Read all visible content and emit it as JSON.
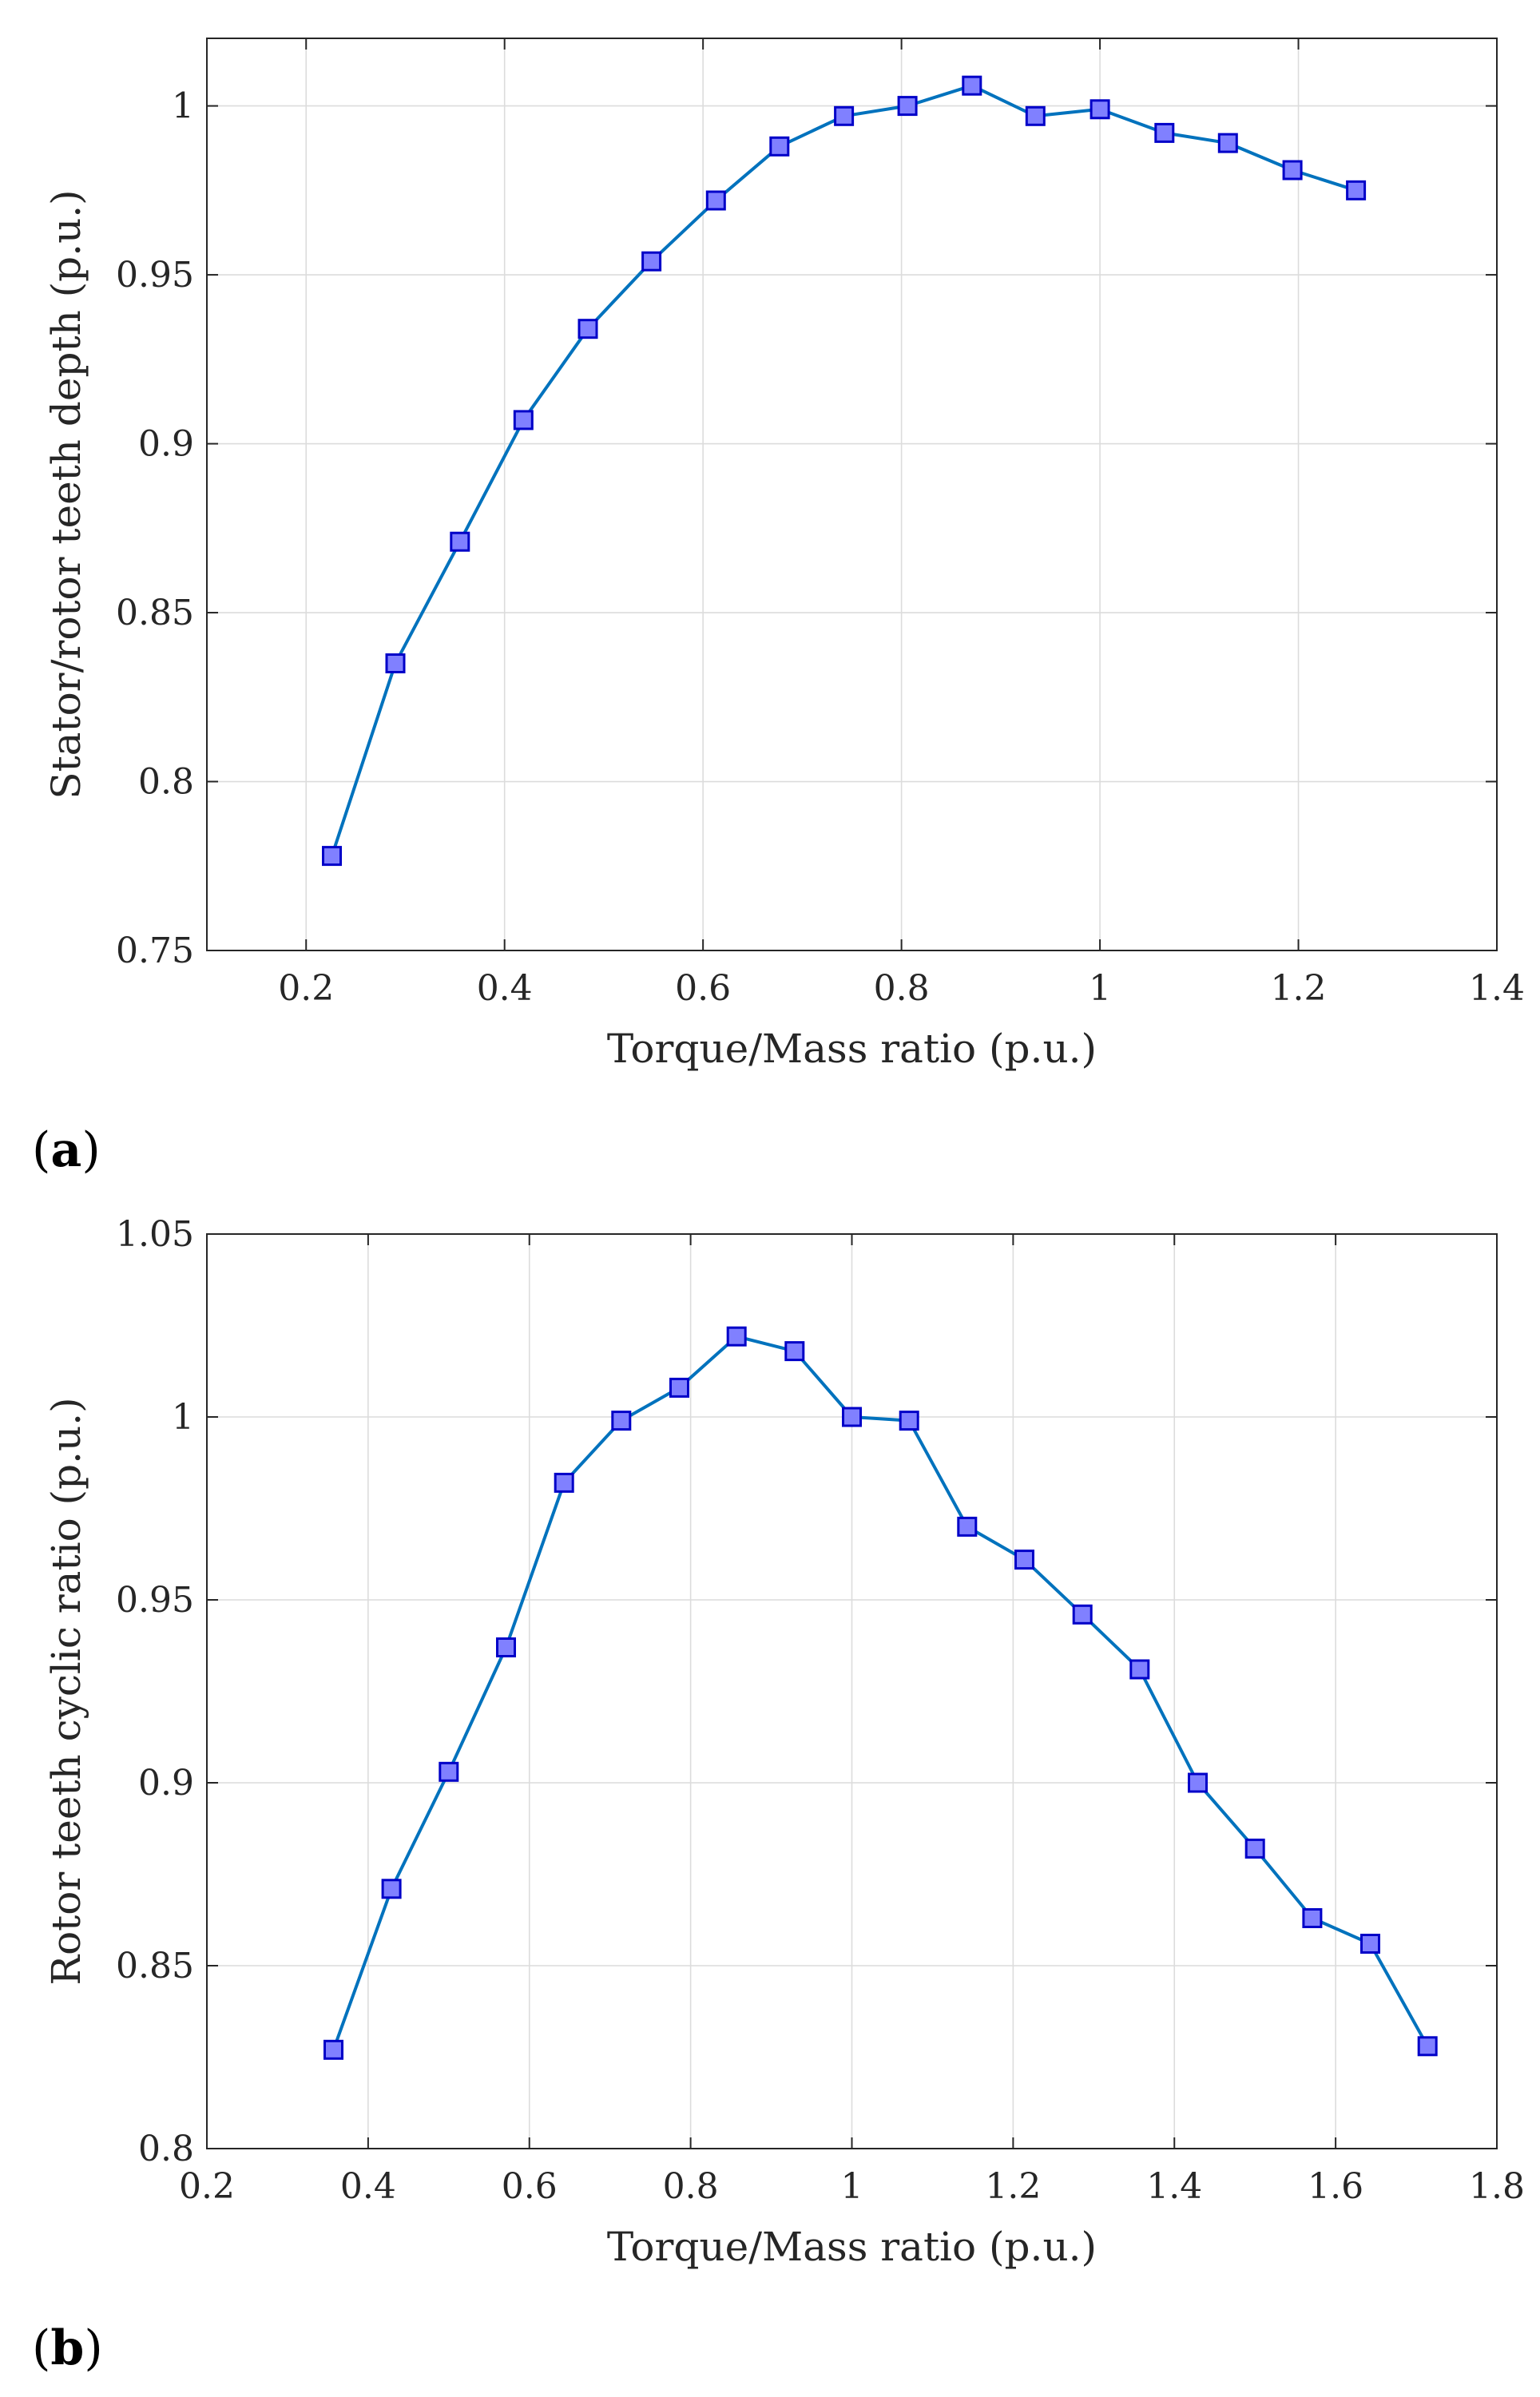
{
  "panels": [
    {
      "label_open": "(",
      "label_letter": "a",
      "label_close": ")"
    },
    {
      "label_open": "(",
      "label_letter": "b",
      "label_close": ")"
    }
  ],
  "colors": {
    "line": "#0072BD",
    "marker_fill": "#8080FF",
    "marker_stroke": "#0000C8",
    "grid": "#DCDCDC",
    "axes": "#262626",
    "text": "#262626"
  },
  "chart_data": [
    {
      "type": "line",
      "title": "",
      "xlabel": "Torque/Mass ratio (p.u.)",
      "ylabel": "Stator/rotor teeth depth (p.u.)",
      "xlim": [
        0.1,
        1.4
      ],
      "ylim": [
        0.75,
        1.02
      ],
      "xticks": [
        0.2,
        0.4,
        0.6,
        0.8,
        1.0,
        1.2,
        1.4
      ],
      "xtick_labels": [
        "0.2",
        "0.4",
        "0.6",
        "0.8",
        "1",
        "1.2",
        "1.4"
      ],
      "yticks": [
        0.75,
        0.8,
        0.85,
        0.9,
        0.95,
        1.0
      ],
      "ytick_labels": [
        "0.75",
        "0.8",
        "0.85",
        "0.9",
        "0.95",
        "1"
      ],
      "grid": true,
      "marker": "square",
      "series": [
        {
          "name": "",
          "x": [
            0.226,
            0.29,
            0.355,
            0.419,
            0.484,
            0.548,
            0.613,
            0.677,
            0.742,
            0.806,
            0.871,
            0.935,
            1.0,
            1.065,
            1.129,
            1.194,
            1.258
          ],
          "y": [
            0.778,
            0.835,
            0.871,
            0.907,
            0.934,
            0.954,
            0.972,
            0.988,
            0.997,
            1.0,
            1.006,
            0.997,
            0.999,
            0.992,
            0.989,
            0.981,
            0.975
          ]
        }
      ]
    },
    {
      "type": "line",
      "title": "",
      "xlabel": "Torque/Mass ratio (p.u.)",
      "ylabel": "Rotor teeth cyclic ratio (p.u.)",
      "xlim": [
        0.2,
        1.8
      ],
      "ylim": [
        0.8,
        1.05
      ],
      "xticks": [
        0.2,
        0.4,
        0.6,
        0.8,
        1.0,
        1.2,
        1.4,
        1.6,
        1.8
      ],
      "xtick_labels": [
        "0.2",
        "0.4",
        "0.6",
        "0.8",
        "1",
        "1.2",
        "1.4",
        "1.6",
        "1.8"
      ],
      "yticks": [
        0.8,
        0.85,
        0.9,
        0.95,
        1.0,
        1.05
      ],
      "ytick_labels": [
        "0.8",
        "0.85",
        "0.9",
        "0.95",
        "1",
        "1.05"
      ],
      "grid": true,
      "marker": "square",
      "series": [
        {
          "name": "",
          "x": [
            0.357,
            0.429,
            0.5,
            0.571,
            0.643,
            0.714,
            0.786,
            0.857,
            0.929,
            1.0,
            1.071,
            1.143,
            1.214,
            1.286,
            1.357,
            1.429,
            1.5,
            1.571,
            1.643,
            1.714
          ],
          "y": [
            0.827,
            0.871,
            0.903,
            0.937,
            0.982,
            0.999,
            1.008,
            1.022,
            1.018,
            1.0,
            0.999,
            0.97,
            0.961,
            0.946,
            0.931,
            0.9,
            0.882,
            0.863,
            0.856,
            0.828
          ]
        }
      ]
    }
  ]
}
